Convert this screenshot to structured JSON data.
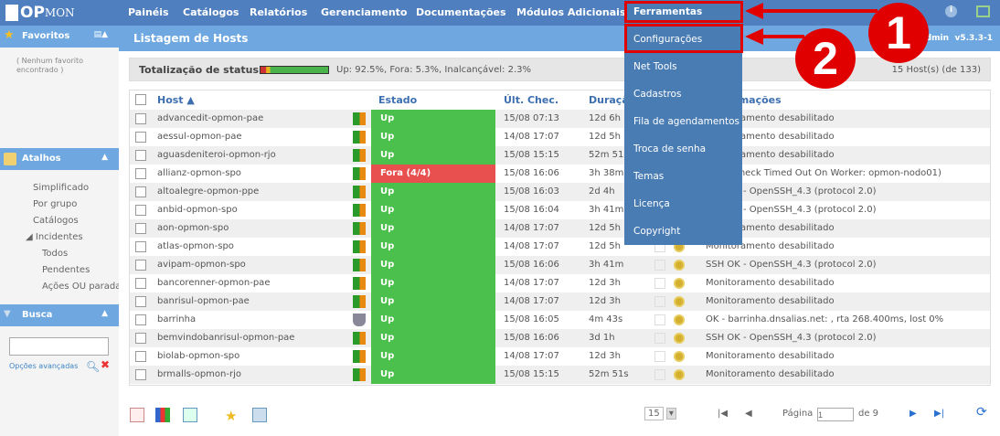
{
  "app": {
    "logo": "OP",
    "logo_suffix": "MON",
    "version": "v5.3.3-1",
    "user": "admin"
  },
  "nav": [
    "Painéis",
    "Catálogos",
    "Relatórios",
    "Gerenciamento",
    "Documentações",
    "Módulos Adicionais",
    "Ferramentas"
  ],
  "page_title": "Listagem de Hosts",
  "sidebar": {
    "favoritos": "Favoritos",
    "no_favorites": "( Nenhum favorito encontrado )",
    "atalhos": "Atalhos",
    "shortcuts": [
      "Simplificado",
      "Por grupo",
      "Catálogos",
      "Incidentes"
    ],
    "incidentes": [
      "Todos",
      "Pendentes",
      "Ações OU paradas"
    ],
    "busca": "Busca",
    "search_value": "",
    "advanced": "Opções avançadas"
  },
  "status": {
    "label": "Totalização de status",
    "text": "Up: 92.5%, Fora: 5.3%, Inalcançável: 2.3%",
    "count": "15 Host(s) (de 133)",
    "up_pct": 92.5,
    "down_pct": 5.3,
    "unreachable_pct": 2.3
  },
  "table": {
    "headers": {
      "host": "Host ▲",
      "estado": "Estado",
      "ultchec": "Últ. Chec.",
      "duracao": "Duração",
      "info": "Informações"
    },
    "rows": [
      {
        "host": "advancedit-opmon-pae",
        "estado": "Up",
        "ult": "15/08 07:13",
        "dur": "12d 6h",
        "info": "Monitoramento desabilitado"
      },
      {
        "host": "aessul-opmon-pae",
        "estado": "Up",
        "ult": "14/08 17:07",
        "dur": "12d 5h",
        "info": "Monitoramento desabilitado"
      },
      {
        "host": "aguasdeniteroi-opmon-rjo",
        "estado": "Up",
        "ult": "15/08 15:15",
        "dur": "52m 51s",
        "info": "Monitoramento desabilitado"
      },
      {
        "host": "allianz-opmon-spo",
        "estado": "Fora (4/4)",
        "ult": "15/08 16:06",
        "dur": "3h 38m",
        "info": "(Host Check Timed Out On Worker: opmon-nodo01)"
      },
      {
        "host": "altoalegre-opmon-ppe",
        "estado": "Up",
        "ult": "15/08 16:03",
        "dur": "2d 4h",
        "info": "SSH OK - OpenSSH_4.3 (protocol 2.0)"
      },
      {
        "host": "anbid-opmon-spo",
        "estado": "Up",
        "ult": "15/08 16:04",
        "dur": "3h 41m",
        "info": "SSH OK - OpenSSH_4.3 (protocol 2.0)"
      },
      {
        "host": "aon-opmon-spo",
        "estado": "Up",
        "ult": "14/08 17:07",
        "dur": "12d 5h",
        "info": "Monitoramento desabilitado"
      },
      {
        "host": "atlas-opmon-spo",
        "estado": "Up",
        "ult": "14/08 17:07",
        "dur": "12d 5h",
        "info": "Monitoramento desabilitado"
      },
      {
        "host": "avipam-opmon-spo",
        "estado": "Up",
        "ult": "15/08 16:06",
        "dur": "3h 41m",
        "info": "SSH OK - OpenSSH_4.3 (protocol 2.0)"
      },
      {
        "host": "bancorenner-opmon-pae",
        "estado": "Up",
        "ult": "14/08 17:07",
        "dur": "12d 3h",
        "info": "Monitoramento desabilitado"
      },
      {
        "host": "banrisul-opmon-pae",
        "estado": "Up",
        "ult": "14/08 17:07",
        "dur": "12d 3h",
        "info": "Monitoramento desabilitado"
      },
      {
        "host": "barrinha",
        "estado": "Up",
        "ult": "15/08 16:05",
        "dur": "4m 43s",
        "info": "OK - barrinha.dnsalias.net: , rta 268.400ms, lost 0%"
      },
      {
        "host": "bemvindobanrisul-opmon-pae",
        "estado": "Up",
        "ult": "15/08 16:06",
        "dur": "3d 1h",
        "info": "SSH OK - OpenSSH_4.3 (protocol 2.0)"
      },
      {
        "host": "biolab-opmon-spo",
        "estado": "Up",
        "ult": "14/08 17:07",
        "dur": "12d 3h",
        "info": "Monitoramento desabilitado"
      },
      {
        "host": "brmalls-opmon-rjo",
        "estado": "Up",
        "ult": "15/08 15:15",
        "dur": "52m 51s",
        "info": "Monitoramento desabilitado"
      }
    ]
  },
  "menu": [
    "Ferramentas",
    "Configurações",
    "Net Tools",
    "Cadastros",
    "Fila de agendamentos",
    "Troca de senha",
    "Temas",
    "Licença",
    "Copyright"
  ],
  "annotations": [
    "1",
    "2"
  ],
  "pager": {
    "page_size": "15",
    "page_label": "Página",
    "page": "1",
    "of": "de 9"
  },
  "colors": {
    "nav": "#4f7fbf",
    "sub": "#6fa8e0",
    "up": "#4cc04c",
    "down": "#e85050",
    "annot": "#e00000"
  }
}
